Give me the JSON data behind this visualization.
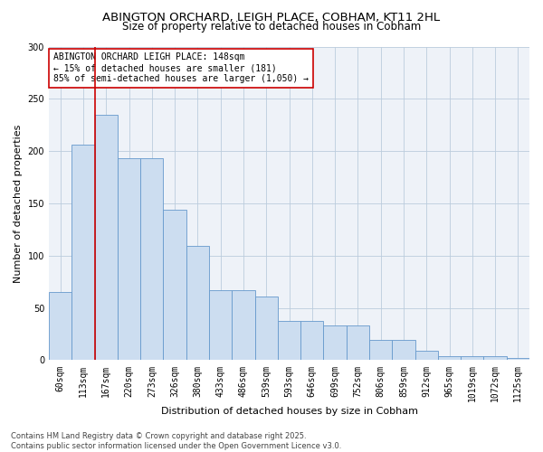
{
  "title1": "ABINGTON ORCHARD, LEIGH PLACE, COBHAM, KT11 2HL",
  "title2": "Size of property relative to detached houses in Cobham",
  "xlabel": "Distribution of detached houses by size in Cobham",
  "ylabel": "Number of detached properties",
  "categories": [
    "60sqm",
    "113sqm",
    "167sqm",
    "220sqm",
    "273sqm",
    "326sqm",
    "380sqm",
    "433sqm",
    "486sqm",
    "539sqm",
    "593sqm",
    "646sqm",
    "699sqm",
    "752sqm",
    "806sqm",
    "859sqm",
    "912sqm",
    "965sqm",
    "1019sqm",
    "1072sqm",
    "1125sqm"
  ],
  "values": [
    65,
    206,
    235,
    193,
    193,
    144,
    109,
    67,
    67,
    61,
    38,
    38,
    33,
    33,
    19,
    19,
    9,
    4,
    4,
    4,
    2
  ],
  "bar_color": "#ccddf0",
  "bar_edge_color": "#6699cc",
  "vline_x": 1.5,
  "vline_color": "#cc0000",
  "annotation_text": "ABINGTON ORCHARD LEIGH PLACE: 148sqm\n← 15% of detached houses are smaller (181)\n85% of semi-detached houses are larger (1,050) →",
  "annotation_box_color": "#ffffff",
  "annotation_box_edge": "#cc0000",
  "ylim": [
    0,
    300
  ],
  "yticks": [
    0,
    50,
    100,
    150,
    200,
    250,
    300
  ],
  "grid_color": "#bbccdd",
  "bg_color": "#eef2f8",
  "footnote": "Contains HM Land Registry data © Crown copyright and database right 2025.\nContains public sector information licensed under the Open Government Licence v3.0.",
  "title1_fontsize": 9.5,
  "title2_fontsize": 8.5,
  "axis_label_fontsize": 8,
  "tick_fontsize": 7,
  "annotation_fontsize": 7,
  "footnote_fontsize": 6
}
